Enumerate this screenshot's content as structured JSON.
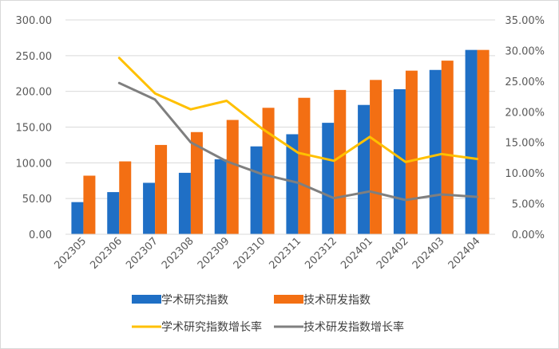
{
  "chart_data": {
    "type": "bar",
    "categories": [
      "202305",
      "202306",
      "202307",
      "202308",
      "202309",
      "202310",
      "202311",
      "202312",
      "202401",
      "202402",
      "202403",
      "202404"
    ],
    "series": [
      {
        "name": "学术研究指数",
        "type": "bar",
        "axis": "left",
        "color": "#1f6fc5",
        "values": [
          45,
          59,
          72,
          86,
          105,
          123,
          140,
          156,
          181,
          203,
          230,
          258
        ]
      },
      {
        "name": "技术研发指数",
        "type": "bar",
        "axis": "left",
        "color": "#f36f13",
        "values": [
          82,
          102,
          125,
          143,
          160,
          177,
          191,
          202,
          216,
          229,
          243,
          258
        ]
      },
      {
        "name": "学术研究指数增长率",
        "type": "line",
        "axis": "right",
        "color": "#ffc000",
        "values": [
          null,
          28.8,
          23.0,
          20.4,
          21.8,
          17.2,
          13.3,
          12.0,
          15.9,
          11.8,
          13.1,
          12.3
        ]
      },
      {
        "name": "技术研发指数增长率",
        "type": "line",
        "axis": "right",
        "color": "#7f7f7f",
        "values": [
          null,
          24.7,
          22.0,
          15.0,
          11.9,
          9.8,
          8.4,
          5.9,
          7.0,
          5.6,
          6.5,
          6.1
        ]
      }
    ],
    "ylim_left": [
      0,
      300
    ],
    "yticks_left": [
      "0.00",
      "50.00",
      "100.00",
      "150.00",
      "200.00",
      "250.00",
      "300.00"
    ],
    "ylim_right": [
      0,
      35
    ],
    "yticks_right": [
      "0.00%",
      "5.00%",
      "10.00%",
      "15.00%",
      "20.00%",
      "25.00%",
      "30.00%",
      "35.00%"
    ],
    "grid": true,
    "legend": "bottom"
  }
}
